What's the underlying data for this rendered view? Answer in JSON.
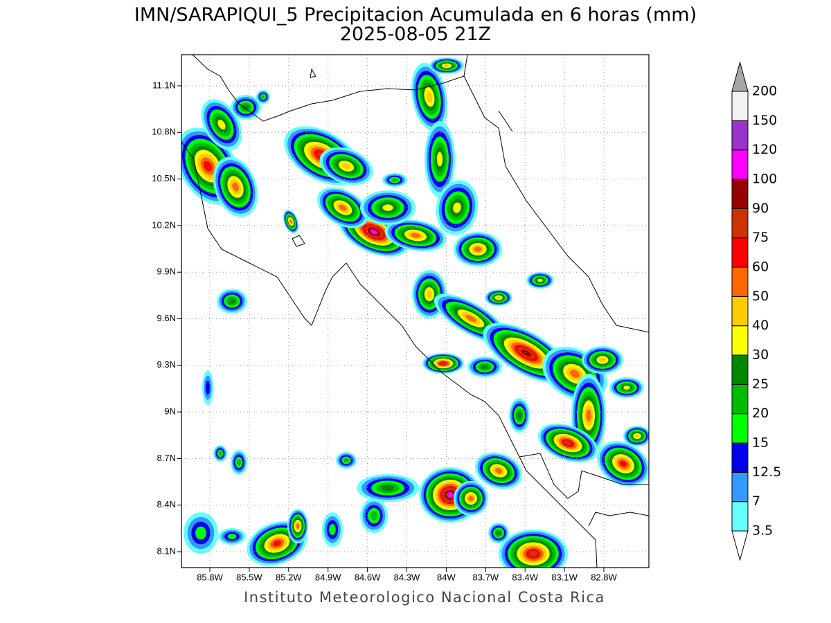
{
  "title": "IMN/SARAPIQUI_5 Precipitacion Acumulada en 6 horas (mm)",
  "subtitle": "2025-08-05 21Z",
  "lat_labels": [
    "11.1N",
    "10.8N",
    "10.5N",
    "10.2N",
    "9.9N",
    "9.6N",
    "9.3N",
    "9N",
    "8.7N",
    "8.4N",
    "8.1N"
  ],
  "lon_labels": [
    "85.8W",
    "85.5W",
    "85.2W",
    "84.9W",
    "84.6W",
    "84.3W",
    "84W",
    "83.7W",
    "83.4W",
    "83.1W",
    "82.8W"
  ],
  "colorbar": {
    "labels": [
      3.5,
      7,
      12.5,
      15,
      20,
      25,
      30,
      40,
      50,
      60,
      75,
      90,
      100,
      120,
      150,
      200
    ],
    "colors": [
      "#66ffff",
      "#3399ff",
      "#0000ee",
      "#00ff00",
      "#00bb00",
      "#008800",
      "#ffff00",
      "#ffcc00",
      "#ff6600",
      "#ff0000",
      "#cc3300",
      "#990000",
      "#ff00ff",
      "#9933cc",
      "#f2f2f2"
    ],
    "over_color": "#a6a6a6",
    "under_color": "#ffffff"
  },
  "credit": "Instituto Meteorologico Nacional Costa Rica"
}
